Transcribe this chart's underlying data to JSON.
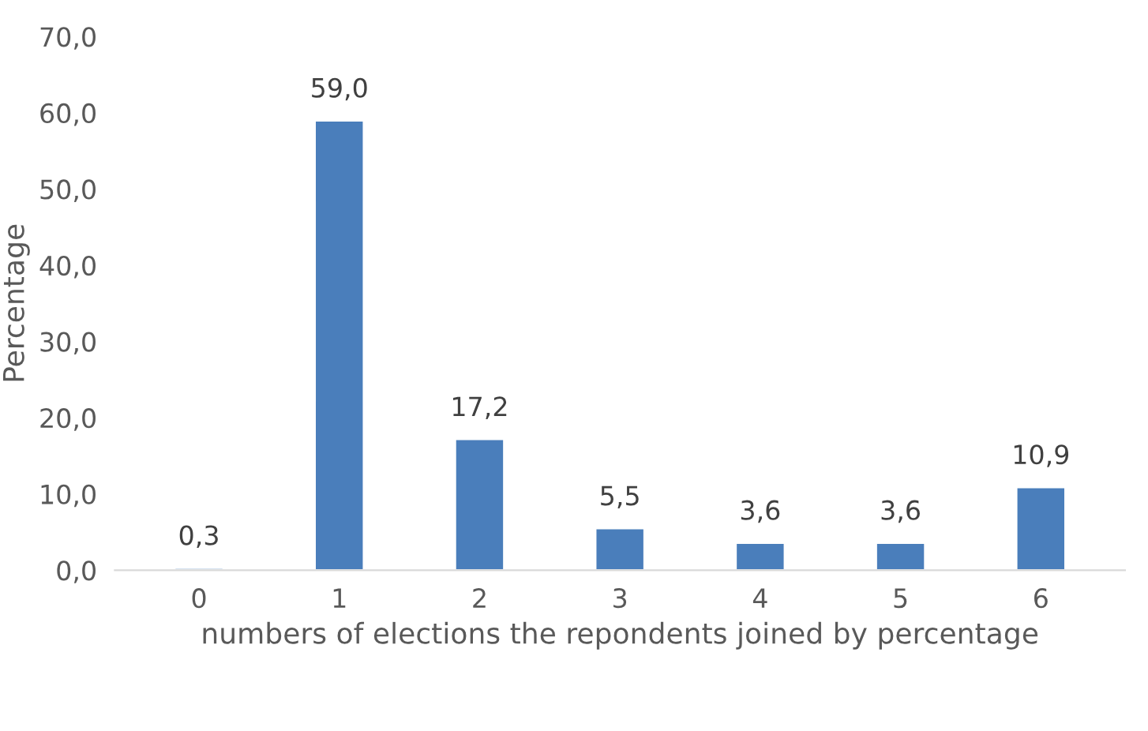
{
  "chart_data": {
    "type": "bar",
    "categories": [
      "0",
      "1",
      "2",
      "3",
      "4",
      "5",
      "6"
    ],
    "values": [
      0.3,
      59.0,
      17.2,
      5.5,
      3.6,
      3.6,
      10.9
    ],
    "value_labels": [
      "0,3",
      "59,0",
      "17,2",
      "5,5",
      "3,6",
      "3,6",
      "10,9"
    ],
    "color": "#4a7ebb",
    "xlabel": "numbers of elections the repondents joined by percentage",
    "ylabel": "Percentage",
    "ylim": [
      0,
      70
    ],
    "yticks": [
      {
        "value": 0,
        "label": "0,0"
      },
      {
        "value": 10,
        "label": "10,0"
      },
      {
        "value": 20,
        "label": "20,0"
      },
      {
        "value": 30,
        "label": "30,0"
      },
      {
        "value": 40,
        "label": "40,0"
      },
      {
        "value": 50,
        "label": "50,0"
      },
      {
        "value": 60,
        "label": "60,0"
      },
      {
        "value": 70,
        "label": "70,0"
      }
    ],
    "grid": false,
    "legend": false
  }
}
